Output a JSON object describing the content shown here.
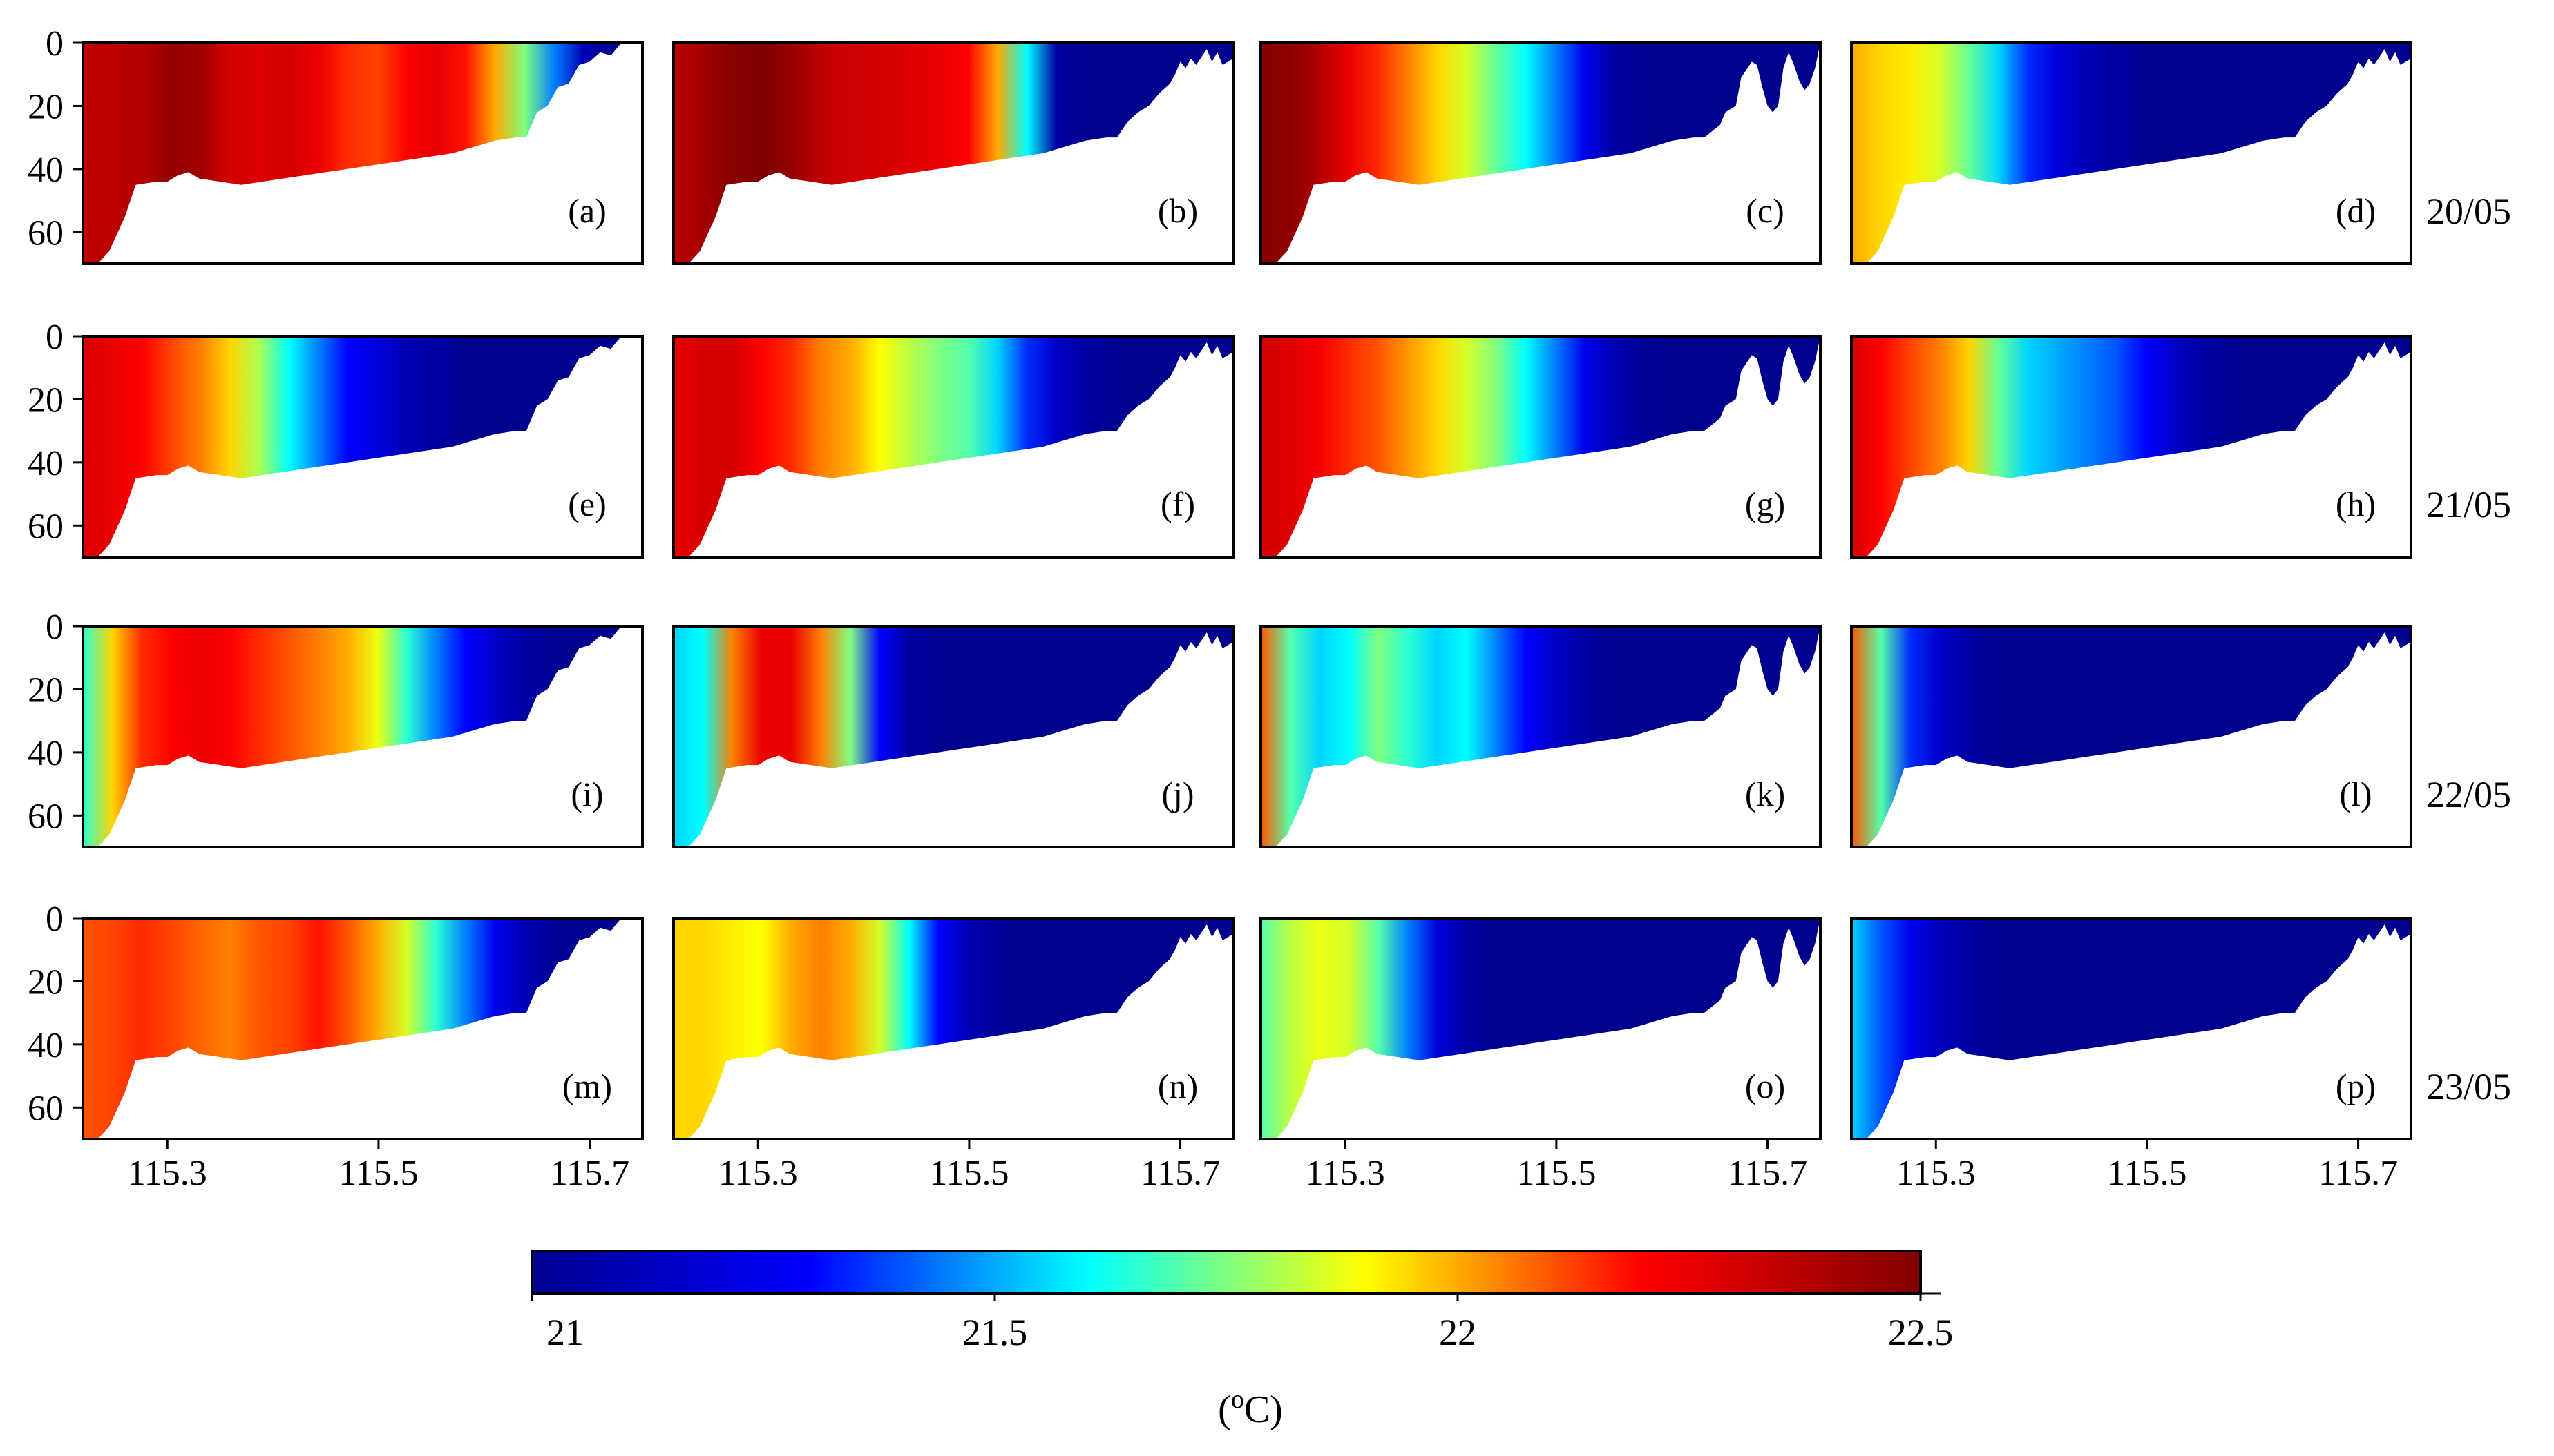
{
  "chart_data": {
    "type": "heatmap",
    "title": "",
    "description_units": "Vertical temperature sections: x = longitude, y = depth",
    "xlabel": "",
    "ylabel": "",
    "x_ticks": [
      "115.3",
      "115.5",
      "115.7"
    ],
    "x_tick_values": [
      115.3,
      115.5,
      115.7
    ],
    "xlim": [
      115.22,
      115.75
    ],
    "y_ticks": [
      "0",
      "20",
      "40",
      "60"
    ],
    "y_tick_values": [
      0,
      20,
      40,
      60
    ],
    "ylim": [
      0,
      70
    ],
    "row_labels": [
      "20/05",
      "21/05",
      "22/05",
      "23/05"
    ],
    "panels": [
      {
        "label": "(a)",
        "row": 0,
        "col": 0,
        "temps": [
          22.35,
          22.36,
          22.38,
          22.45,
          22.42,
          22.3,
          22.28,
          22.3,
          22.25,
          22.15,
          22.12,
          22.2,
          22.26,
          22.18,
          22.0,
          21.75,
          21.45,
          21.1,
          21.0,
          21.0
        ]
      },
      {
        "label": "(b)",
        "row": 0,
        "col": 1,
        "temps": [
          22.35,
          22.42,
          22.48,
          22.5,
          22.45,
          22.35,
          22.32,
          22.3,
          22.28,
          22.25,
          22.2,
          22.0,
          21.6,
          21.05,
          21.0,
          21.0,
          21.0,
          21.0,
          21.0,
          21.0
        ]
      },
      {
        "label": "(c)",
        "row": 0,
        "col": 2,
        "temps": [
          22.48,
          22.47,
          22.38,
          22.25,
          22.15,
          22.05,
          21.95,
          21.85,
          21.72,
          21.6,
          21.45,
          21.25,
          21.05,
          21.0,
          21.0,
          21.0,
          21.0,
          21.0,
          21.0,
          21.0
        ]
      },
      {
        "label": "(d)",
        "row": 0,
        "col": 3,
        "temps": [
          22.0,
          21.95,
          21.92,
          21.85,
          21.72,
          21.55,
          21.35,
          21.2,
          21.1,
          21.05,
          21.0,
          21.0,
          21.0,
          21.0,
          21.0,
          21.0,
          21.0,
          21.0,
          21.0,
          21.0
        ]
      },
      {
        "label": "(e)",
        "row": 1,
        "col": 0,
        "temps": [
          22.3,
          22.25,
          22.2,
          22.12,
          22.05,
          21.95,
          21.8,
          21.6,
          21.45,
          21.3,
          21.2,
          21.1,
          21.05,
          21.0,
          21.0,
          21.0,
          21.0,
          21.0,
          21.0,
          21.0
        ]
      },
      {
        "label": "(f)",
        "row": 1,
        "col": 1,
        "temps": [
          22.25,
          22.3,
          22.3,
          22.2,
          22.15,
          22.05,
          22.0,
          21.9,
          21.82,
          21.75,
          21.7,
          21.55,
          21.35,
          21.15,
          21.05,
          21.0,
          21.0,
          21.0,
          21.0,
          21.0
        ]
      },
      {
        "label": "(g)",
        "row": 1,
        "col": 2,
        "temps": [
          22.3,
          22.28,
          22.22,
          22.15,
          22.1,
          22.02,
          21.95,
          21.85,
          21.75,
          21.6,
          21.45,
          21.25,
          21.1,
          21.02,
          21.0,
          21.0,
          21.0,
          21.0,
          21.0,
          21.0
        ]
      },
      {
        "label": "(h)",
        "row": 1,
        "col": 3,
        "temps": [
          22.3,
          22.2,
          22.12,
          22.05,
          21.95,
          21.72,
          21.55,
          21.5,
          21.45,
          21.4,
          21.3,
          21.15,
          21.05,
          21.0,
          21.0,
          21.0,
          21.0,
          21.0,
          21.0,
          21.0
        ]
      },
      {
        "label": "(i)",
        "row": 2,
        "col": 0,
        "temps": [
          21.65,
          21.95,
          22.15,
          22.2,
          22.25,
          22.2,
          22.15,
          22.1,
          22.05,
          22.0,
          21.88,
          21.65,
          21.45,
          21.3,
          21.15,
          21.05,
          21.0,
          21.0,
          21.0,
          21.0
        ]
      },
      {
        "label": "(j)",
        "row": 2,
        "col": 1,
        "temps": [
          21.55,
          21.6,
          22.05,
          22.25,
          22.25,
          22.05,
          21.75,
          21.3,
          21.05,
          21.0,
          21.0,
          21.0,
          21.0,
          21.0,
          21.0,
          21.0,
          21.0,
          21.0,
          21.0,
          21.0
        ]
      },
      {
        "label": "(k)",
        "row": 2,
        "col": 2,
        "temps": [
          22.1,
          21.7,
          21.55,
          21.6,
          21.75,
          21.65,
          21.55,
          21.6,
          21.45,
          21.3,
          21.15,
          21.05,
          21.0,
          21.0,
          21.0,
          21.0,
          21.0,
          21.0,
          21.0,
          21.0
        ]
      },
      {
        "label": "(l)",
        "row": 2,
        "col": 3,
        "temps": [
          22.1,
          21.7,
          21.35,
          21.15,
          21.05,
          21.0,
          21.0,
          21.0,
          21.0,
          21.0,
          21.0,
          21.0,
          21.0,
          21.0,
          21.0,
          21.0,
          21.0,
          21.0,
          21.0,
          21.0
        ]
      },
      {
        "label": "(m)",
        "row": 3,
        "col": 0,
        "temps": [
          22.1,
          22.12,
          22.15,
          22.12,
          22.08,
          22.05,
          22.1,
          22.12,
          22.18,
          22.1,
          22.0,
          21.85,
          21.65,
          21.45,
          21.25,
          21.1,
          21.02,
          21.0,
          21.0,
          21.0
        ]
      },
      {
        "label": "(n)",
        "row": 3,
        "col": 1,
        "temps": [
          21.95,
          21.95,
          21.92,
          21.9,
          22.0,
          22.05,
          22.0,
          21.85,
          21.6,
          21.3,
          21.1,
          21.02,
          21.0,
          21.0,
          21.0,
          21.0,
          21.0,
          21.0,
          21.0,
          21.0
        ]
      },
      {
        "label": "(o)",
        "row": 3,
        "col": 2,
        "temps": [
          21.7,
          21.82,
          21.88,
          21.85,
          21.7,
          21.45,
          21.2,
          21.05,
          21.0,
          21.0,
          21.0,
          21.0,
          21.0,
          21.0,
          21.0,
          21.0,
          21.0,
          21.0,
          21.0,
          21.0
        ]
      },
      {
        "label": "(p)",
        "row": 3,
        "col": 3,
        "temps": [
          21.55,
          21.4,
          21.25,
          21.12,
          21.05,
          21.0,
          21.0,
          21.0,
          21.0,
          21.0,
          21.0,
          21.0,
          21.0,
          21.0,
          21.0,
          21.0,
          21.0,
          21.0,
          21.0,
          21.0
        ]
      }
    ],
    "colorbar": {
      "min": 21,
      "max": 22.5,
      "ticks": [
        "21",
        "21.5",
        "22",
        "22.5"
      ],
      "tick_values": [
        21,
        21.5,
        22,
        22.5
      ],
      "unit_prefix": "(",
      "unit_superscript": "o",
      "unit_suffix": "C)",
      "colors": [
        "#00008f",
        "#0000ff",
        "#00ffff",
        "#ffff00",
        "#ff0000",
        "#800000"
      ]
    }
  }
}
